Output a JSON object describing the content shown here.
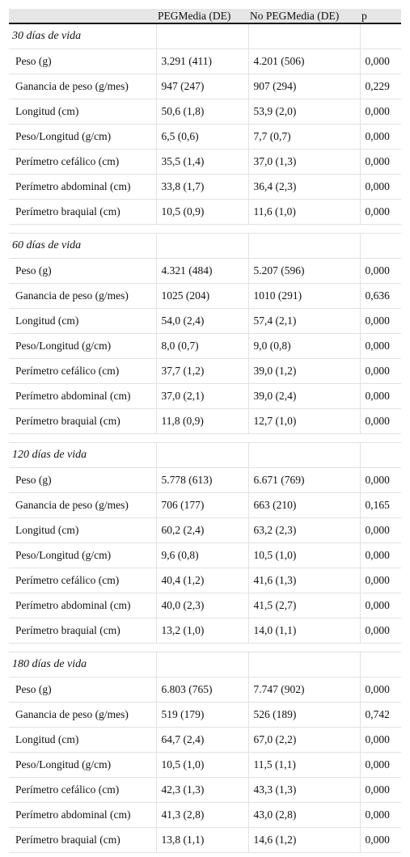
{
  "headers": [
    "",
    "PEGMedia (DE)",
    "No PEGMedia (DE)",
    "p"
  ],
  "sections": [
    {
      "title": "30 días de vida",
      "rows": [
        [
          "Peso (g)",
          "3.291 (411)",
          "4.201 (506)",
          "0,000"
        ],
        [
          "Ganancia de peso (g/mes)",
          "947 (247)",
          "907 (294)",
          "0,229"
        ],
        [
          "Longitud (cm)",
          "50,6 (1,8)",
          "53,9 (2,0)",
          "0,000"
        ],
        [
          "Peso/Longitud (g/cm)",
          "6,5 (0,6)",
          "7,7 (0,7)",
          "0,000"
        ],
        [
          "Perímetro cefálico (cm)",
          "35,5 (1,4)",
          "37,0 (1,3)",
          "0,000"
        ],
        [
          "Perímetro abdominal (cm)",
          "33,8 (1,7)",
          "36,4 (2,3)",
          "0,000"
        ],
        [
          "Perímetro braquial (cm)",
          "10,5 (0,9)",
          "11,6 (1,0)",
          "0,000"
        ]
      ]
    },
    {
      "title": "60 días de vida",
      "rows": [
        [
          "Peso (g)",
          "4.321 (484)",
          "5.207 (596)",
          "0,000"
        ],
        [
          "Ganancia de peso (g/mes)",
          "1025 (204)",
          "1010 (291)",
          "0,636"
        ],
        [
          "Longitud (cm)",
          "54,0 (2,4)",
          "57,4 (2,1)",
          "0,000"
        ],
        [
          "Peso/Longitud (g/cm)",
          "8,0 (0,7)",
          "9,0 (0,8)",
          "0,000"
        ],
        [
          "Perímetro cefálico (cm)",
          "37,7 (1,2)",
          "39,0 (1,2)",
          "0,000"
        ],
        [
          "Perímetro abdominal (cm)",
          "37,0 (2,1)",
          "39,0 (2,4)",
          "0,000"
        ],
        [
          "Perímetro braquial (cm)",
          "11,8 (0,9)",
          "12,7 (1,0)",
          "0,000"
        ]
      ]
    },
    {
      "title": "120 días de vida",
      "rows": [
        [
          "Peso (g)",
          "5.778 (613)",
          "6.671 (769)",
          "0,000"
        ],
        [
          "Ganancia de peso (g/mes)",
          "706 (177)",
          "663 (210)",
          "0,165"
        ],
        [
          "Longitud (cm)",
          "60,2 (2,4)",
          "63,2 (2,3)",
          "0,000"
        ],
        [
          "Peso/Longitud (g/cm)",
          "9,6 (0,8)",
          "10,5 (1,0)",
          "0,000"
        ],
        [
          "Perímetro cefálico (cm)",
          "40,4 (1,2)",
          "41,6 (1,3)",
          "0,000"
        ],
        [
          "Perímetro abdominal (cm)",
          "40,0 (2,3)",
          "41,5 (2,7)",
          "0,000"
        ],
        [
          "Perímetro braquial (cm)",
          "13,2 (1,0)",
          "14,0 (1,1)",
          "0,000"
        ]
      ]
    },
    {
      "title": "180 días de vida",
      "rows": [
        [
          "Peso (g)",
          "6.803 (765)",
          "7.747 (902)",
          "0,000"
        ],
        [
          "Ganancia de peso (g/mes)",
          "519 (179)",
          "526 (189)",
          "0,742"
        ],
        [
          "Longitud (cm)",
          "64,7 (2,4)",
          "67,0 (2,2)",
          "0,000"
        ],
        [
          "Peso/Longitud (g/cm)",
          "10,5 (1,0)",
          "11,5 (1,1)",
          "0,000"
        ],
        [
          "Perímetro cefálico (cm)",
          "42,3 (1,3)",
          "43,3 (1,3)",
          "0,000"
        ],
        [
          "Perímetro abdominal (cm)",
          "41,3 (2,8)",
          "43,0 (2,8)",
          "0,000"
        ],
        [
          "Perímetro braquial (cm)",
          "13,8 (1,1)",
          "14,6 (1,2)",
          "0,000"
        ]
      ]
    }
  ]
}
